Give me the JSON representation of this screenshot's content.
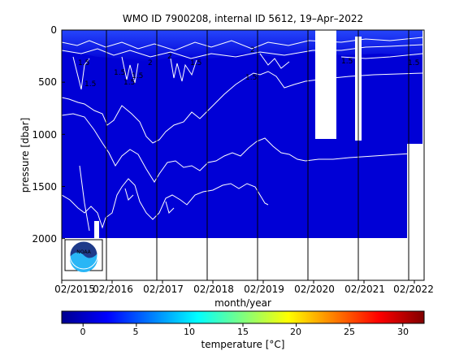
{
  "chart_data": {
    "type": "heatmap",
    "title": "WMO ID 7900208, internal ID 5612, 19–Apr–2022",
    "xlabel": "month/year",
    "ylabel": "pressure [dbar]",
    "x_ticks": [
      "02/2015",
      "02/2016",
      "02/2017",
      "02/2018",
      "02/2019",
      "02/2020",
      "02/2021",
      "02/2022"
    ],
    "y_ticks": [
      0,
      500,
      1000,
      1500,
      2000
    ],
    "ylim": [
      2400,
      0
    ],
    "y_axis_inverted": true,
    "vertical_gridlines": "yes, at each February tick",
    "profile_depth_max": 2000,
    "contour_labels": [
      "1.5",
      "1.5",
      "2",
      "1.5",
      "2",
      "1.5",
      "1.5",
      "1.5",
      "2",
      "1.5",
      "1.5",
      "1.5"
    ],
    "colorbar": {
      "label": "temperature [°C]",
      "ticks": [
        0,
        5,
        10,
        15,
        20,
        25,
        30
      ],
      "range": [
        -2,
        32
      ],
      "colormap": "jet"
    },
    "colors": {
      "background_water": "#0000d6",
      "surface_water": "#0f27ff",
      "contour_line": "#ffffff",
      "frame": "#000000"
    },
    "logo": {
      "text": "NOAA",
      "icon": "noaa-logo-icon"
    }
  }
}
